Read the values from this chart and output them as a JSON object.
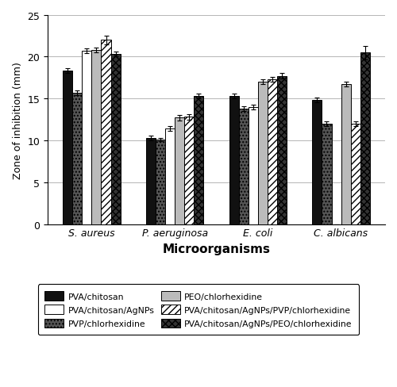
{
  "categories": [
    "S. aureus",
    "P. aeruginosa",
    "E. coli",
    "C. albicans"
  ],
  "series": [
    {
      "label": "PVA/chitosan",
      "values": [
        18.3,
        10.3,
        15.3,
        14.8
      ],
      "errors": [
        0.3,
        0.3,
        0.3,
        0.3
      ],
      "color": "#111111",
      "hatch": null,
      "edgecolor": "black"
    },
    {
      "label": "PVP/chlorhexidine",
      "values": [
        15.7,
        10.1,
        13.8,
        12.0
      ],
      "errors": [
        0.3,
        0.2,
        0.3,
        0.3
      ],
      "color": "#555555",
      "hatch": "....",
      "edgecolor": "black"
    },
    {
      "label": "PVA/chitosan/AgNPs",
      "values": [
        20.7,
        11.4,
        14.0,
        0.0
      ],
      "errors": [
        0.3,
        0.3,
        0.3,
        0.0
      ],
      "color": "white",
      "hatch": null,
      "edgecolor": "black"
    },
    {
      "label": "PEO/chlorhexidine",
      "values": [
        20.8,
        12.7,
        17.0,
        16.7
      ],
      "errors": [
        0.3,
        0.3,
        0.3,
        0.3
      ],
      "color": "#bbbbbb",
      "hatch": null,
      "edgecolor": "black"
    },
    {
      "label": "PVA/chitosan/AgNPs/PVP/chlorhexidine",
      "values": [
        22.0,
        12.8,
        17.3,
        12.0
      ],
      "errors": [
        0.5,
        0.3,
        0.3,
        0.3
      ],
      "color": "white",
      "hatch": "////",
      "edgecolor": "black"
    },
    {
      "label": "PVA/chitosan/AgNPs/PEO/chlorhexidine",
      "values": [
        20.3,
        15.3,
        17.7,
        20.5
      ],
      "errors": [
        0.3,
        0.3,
        0.3,
        0.8
      ],
      "color": "#333333",
      "hatch": "xxxx",
      "edgecolor": "black"
    }
  ],
  "ylim": [
    0,
    25
  ],
  "yticks": [
    0,
    5,
    10,
    15,
    20,
    25
  ],
  "ylabel": "Zone of inhibition (mm)",
  "xlabel": "Microorganisms",
  "bar_width": 0.115,
  "legend_reorder": [
    0,
    2,
    1,
    3,
    4,
    5
  ]
}
